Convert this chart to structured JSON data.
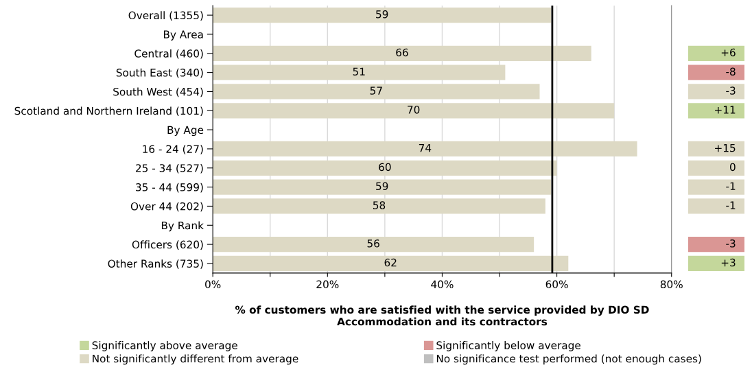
{
  "chart_data": [
    {
      "type": "bar",
      "orientation": "horizontal",
      "xlabel": "% of customers who are satisfied with the service provided by DIO SD\nAccommodation and its contractors",
      "categories": [
        "Overall (1355)",
        "By Area",
        "Central (460)",
        "South East (340)",
        "South West (454)",
        "Scotland and Northern Ireland (101)",
        "By Age",
        "16 - 24 (27)",
        "25 - 34 (527)",
        "35 - 44 (599)",
        "Over 44 (202)",
        "By Rank",
        "Officers (620)",
        "Other Ranks (735)"
      ],
      "values": [
        59,
        null,
        66,
        51,
        57,
        70,
        null,
        74,
        60,
        59,
        58,
        null,
        56,
        62
      ],
      "color": "#ddd9c4",
      "data_labels": true,
      "xlim": [
        0,
        80
      ],
      "xticks": [
        {
          "value": 0,
          "label": "0%"
        },
        {
          "value": 10,
          "label": null
        },
        {
          "value": 20,
          "label": "20%"
        },
        {
          "value": 30,
          "label": null
        },
        {
          "value": 40,
          "label": "40%"
        },
        {
          "value": 50,
          "label": null
        },
        {
          "value": 60,
          "label": "60%"
        },
        {
          "value": 70,
          "label": null
        },
        {
          "value": 80,
          "label": "80%"
        }
      ],
      "grid": "x",
      "ref_lines": [
        {
          "axis": "x",
          "value": 59.2,
          "label": null,
          "color": "#000000"
        }
      ]
    },
    {
      "type": "other",
      "legend": "bottom",
      "annotations": [
        null,
        null,
        "+6",
        "-8",
        "-3",
        "+11",
        null,
        "+15",
        "0",
        "-1",
        "-1",
        null,
        "-3",
        "+3"
      ],
      "colors": [
        null,
        null,
        "#c4d79b",
        "#da9694",
        "#ddd9c4",
        "#c4d79b",
        null,
        "#ddd9c4",
        "#ddd9c4",
        "#ddd9c4",
        "#ddd9c4",
        null,
        "#da9694",
        "#c4d79b"
      ],
      "series": [
        {
          "name": "Significantly above average",
          "color": "#c4d79b"
        },
        {
          "name": "Not significantly different from average",
          "color": "#ddd9c4"
        },
        {
          "name": "Significantly below average",
          "color": "#da9694"
        },
        {
          "name": "No significance test performed (not enough cases)",
          "color": "#bfbfbf"
        }
      ]
    }
  ]
}
